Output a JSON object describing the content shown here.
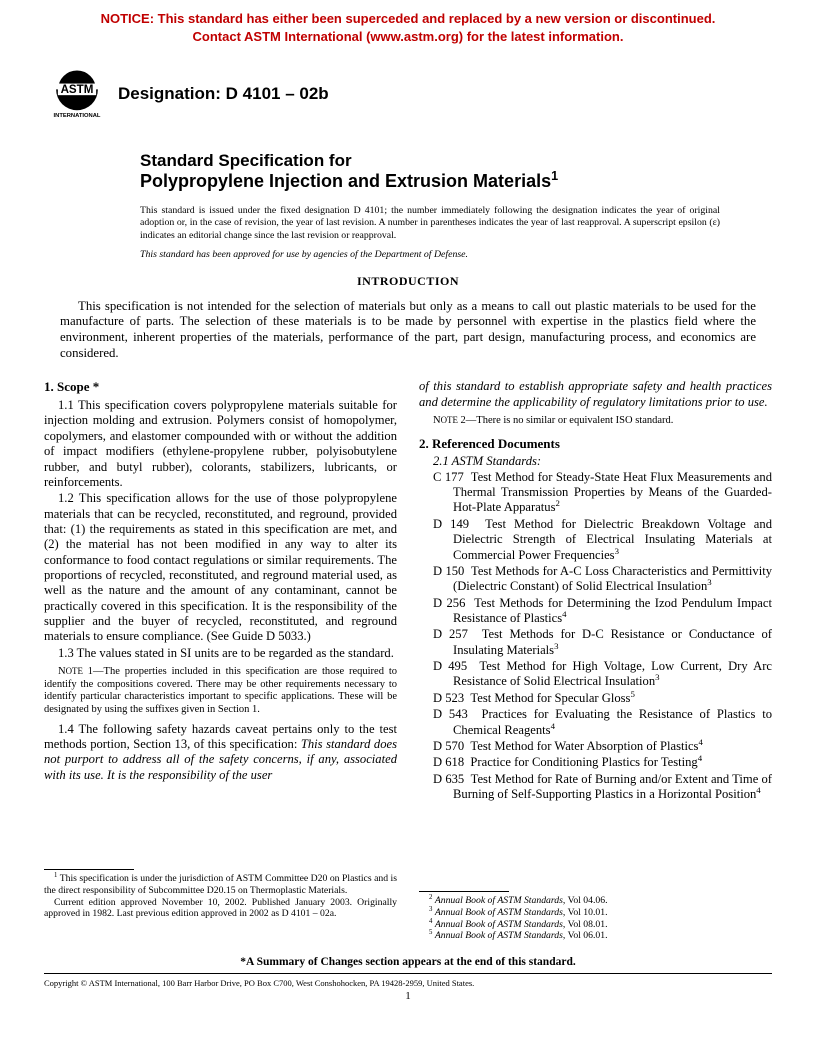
{
  "notice": {
    "line1": "NOTICE: This standard has either been superceded and replaced by a new version or discontinued.",
    "line2": "Contact ASTM International (www.astm.org) for the latest information.",
    "color": "#c00000"
  },
  "logo": {
    "name": "ASTM",
    "sub": "INTERNATIONAL",
    "color": "#000000"
  },
  "designation": "Designation: D 4101 – 02b",
  "title": {
    "line1": "Standard Specification for",
    "line2_pre": "Polypropylene Injection and Extrusion Materials",
    "sup": "1"
  },
  "issuance": "This standard is issued under the fixed designation D 4101; the number immediately following the designation indicates the year of original adoption or, in the case of revision, the year of last revision. A number in parentheses indicates the year of last reapproval. A superscript epsilon (ε) indicates an editorial change since the last revision or reapproval.",
  "dod": "This standard has been approved for use by agencies of the Department of Defense.",
  "intro": {
    "head": "INTRODUCTION",
    "body": "This specification is not intended for the selection of materials but only as a means to call out plastic materials to be used for the manufacture of parts. The selection of these materials is to be made by personnel with expertise in the plastics field where the environment, inherent properties of the materials, performance of the part, part design, manufacturing process, and economics are considered."
  },
  "scope": {
    "head": "1. Scope *",
    "p11": "1.1 This specification covers polypropylene materials suitable for injection molding and extrusion. Polymers consist of homopolymer, copolymers, and elastomer compounded with or without the addition of impact modifiers (ethylene-propylene rubber, polyisobutylene rubber, and butyl rubber), colorants, stabilizers, lubricants, or reinforcements.",
    "p12": "1.2 This specification allows for the use of those polypropylene materials that can be recycled, reconstituted, and reground, provided that: (1) the requirements as stated in this specification are met, and (2) the material has not been modified in any way to alter its conformance to food contact regulations or similar requirements. The proportions of recycled, reconstituted, and reground material used, as well as the nature and the amount of any contaminant, cannot be practically covered in this specification. It is the responsibility of the supplier and the buyer of recycled, reconstituted, and reground materials to ensure compliance. (See Guide D 5033.)",
    "p13": "1.3 The values stated in SI units are to be regarded as the standard.",
    "note1": "NOTE 1—The properties included in this specification are those required to identify the compositions covered. There may be other requirements necessary to identify particular characteristics important to specific applications. These will be designated by using the suffixes given in Section 1.",
    "p14a": "1.4 The following safety hazards caveat pertains only to the test methods portion, Section 13, of this specification: ",
    "p14b": "This standard does not purport to address all of the safety concerns, if any, associated with its use. It is the responsibility of the user",
    "p14c": "of this standard to establish appropriate safety and health practices and determine the applicability of regulatory limitations prior to use.",
    "note2": "NOTE 2—There is no similar or equivalent ISO standard."
  },
  "referenced": {
    "head": "2. Referenced Documents",
    "sub": "2.1 ASTM Standards:",
    "items": [
      {
        "code": "C 177",
        "text": "Test Method for Steady-State Heat Flux Measurements and Thermal Transmission Properties by Means of the Guarded-Hot-Plate Apparatus",
        "sup": "2"
      },
      {
        "code": "D 149",
        "text": "Test Method for Dielectric Breakdown Voltage and Dielectric Strength of Electrical Insulating Materials at Commercial Power Frequencies",
        "sup": "3"
      },
      {
        "code": "D 150",
        "text": "Test Methods for A-C Loss Characteristics and Permittivity (Dielectric Constant) of Solid Electrical Insulation",
        "sup": "3"
      },
      {
        "code": "D 256",
        "text": "Test Methods for Determining the Izod Pendulum Impact Resistance of Plastics",
        "sup": "4"
      },
      {
        "code": "D 257",
        "text": "Test Methods for D-C Resistance or Conductance of Insulating Materials",
        "sup": "3"
      },
      {
        "code": "D 495",
        "text": "Test Method for High Voltage, Low Current, Dry Arc Resistance of Solid Electrical Insulation",
        "sup": "3"
      },
      {
        "code": "D 523",
        "text": "Test Method for Specular Gloss",
        "sup": "5"
      },
      {
        "code": "D 543",
        "text": "Practices for Evaluating the Resistance of Plastics to Chemical Reagents",
        "sup": "4"
      },
      {
        "code": "D 570",
        "text": "Test Method for Water Absorption of Plastics",
        "sup": "4"
      },
      {
        "code": "D 618",
        "text": "Practice for Conditioning Plastics for Testing",
        "sup": "4"
      },
      {
        "code": "D 635",
        "text": "Test Method for Rate of Burning and/or Extent and Time of Burning of Self-Supporting Plastics in a Horizontal Position",
        "sup": "4"
      }
    ]
  },
  "footnotes": {
    "left": [
      {
        "sup": "1",
        "text": " This specification is under the jurisdiction of ASTM Committee D20 on Plastics and is the direct responsibility of Subcommittee D20.15 on Thermoplastic Materials."
      },
      {
        "sup": "",
        "text": "Current edition approved November 10, 2002. Published January 2003. Originally approved in 1982. Last previous edition approved in 2002 as D 4101 – 02a."
      }
    ],
    "right": [
      {
        "sup": "2",
        "text": " Annual Book of ASTM Standards, Vol 04.06.",
        "italic": true
      },
      {
        "sup": "3",
        "text": " Annual Book of ASTM Standards, Vol 10.01.",
        "italic": true
      },
      {
        "sup": "4",
        "text": " Annual Book of ASTM Standards, Vol 08.01.",
        "italic": true
      },
      {
        "sup": "5",
        "text": " Annual Book of ASTM Standards, Vol 06.01.",
        "italic": true
      }
    ]
  },
  "summary": "*A Summary of Changes section appears at the end of this standard.",
  "copyright": "Copyright © ASTM International, 100 Barr Harbor Drive, PO Box C700, West Conshohocken, PA 19428-2959, United States.",
  "page": "1"
}
